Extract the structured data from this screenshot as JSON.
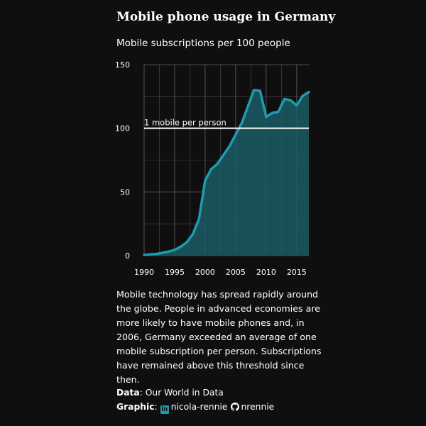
{
  "title": "Mobile phone usage in Germany",
  "subtitle": "Mobile subscriptions per 100 people",
  "description": "Mobile technology has spread rapidly around the globe. People in advanced economies are more likely to have mobile phones and, in 2006, Germany exceeded an average of one mobile subscription per person. Subscriptions have remained above this threshold since then.",
  "credits": {
    "data_label": "Data",
    "data_value": ": Our World in Data",
    "graphic_label": "Graphic",
    "graphic_sep": ":",
    "linkedin_icon": "linkedin-icon",
    "linkedin_handle": "nicola-rennie",
    "github_icon": "github-icon",
    "github_handle": "nrennie"
  },
  "colors": {
    "background": "#0f0f0f",
    "line": "#1f9bb0",
    "area": "#1b5a64",
    "grid": "#4d4d4d",
    "reference": "#ffffff"
  },
  "chart_data": {
    "type": "area",
    "x": [
      1990,
      1991,
      1992,
      1993,
      1994,
      1995,
      1996,
      1997,
      1998,
      1999,
      2000,
      2001,
      2002,
      2003,
      2004,
      2005,
      2006,
      2007,
      2008,
      2009,
      2010,
      2011,
      2012,
      2013,
      2014,
      2015,
      2016,
      2017
    ],
    "y": [
      0.5,
      0.9,
      1.3,
      2.2,
      3.2,
      4.5,
      7.0,
      10.5,
      17.0,
      29.0,
      59.0,
      68.0,
      72.0,
      79.0,
      86.0,
      95.0,
      104.0,
      117.0,
      130.0,
      129.5,
      109.0,
      112.0,
      113.0,
      123.0,
      122.0,
      118.0,
      125.5,
      128.5
    ],
    "xlim": [
      1990,
      2017
    ],
    "ylim": [
      0,
      150
    ],
    "xticks": [
      1990,
      1995,
      2000,
      2005,
      2010,
      2015
    ],
    "yticks": [
      0,
      50,
      100,
      150
    ],
    "grid": true,
    "reference_line": {
      "y": 100,
      "label": "1 mobile per person"
    },
    "xlabel": "",
    "ylabel": ""
  }
}
